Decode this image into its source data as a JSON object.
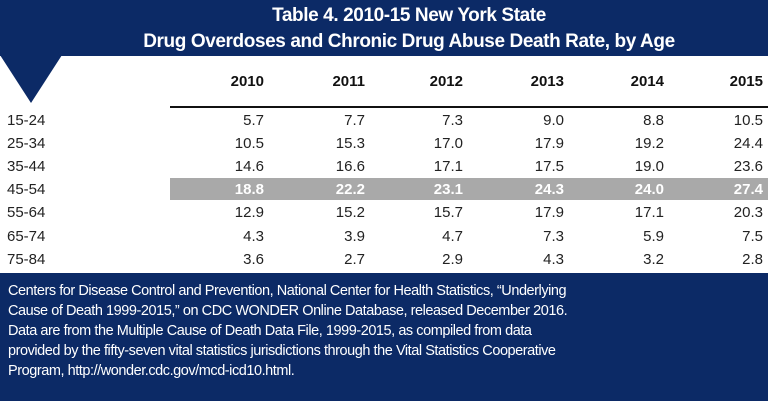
{
  "title_line1": "Table 4. 2010-15 New York State",
  "title_line2": "Drug Overdoses and Chronic Drug Abuse Death Rate, by Age",
  "colors": {
    "navy": "#0c2a66",
    "highlight": "#a9a9a9"
  },
  "highlight_row": "45-54",
  "chart_data": {
    "type": "table",
    "title": "Table 4. 2010-15 New York State Drug Overdoses and Chronic Drug Abuse Death Rate, by Age",
    "columns": [
      "2010",
      "2011",
      "2012",
      "2013",
      "2014",
      "2015"
    ],
    "rows": [
      {
        "label": "15-24",
        "values": [
          "5.7",
          "7.7",
          "7.3",
          "9.0",
          "8.8",
          "10.5"
        ]
      },
      {
        "label": "25-34",
        "values": [
          "10.5",
          "15.3",
          "17.0",
          "17.9",
          "19.2",
          "24.4"
        ]
      },
      {
        "label": "35-44",
        "values": [
          "14.6",
          "16.6",
          "17.1",
          "17.5",
          "19.0",
          "23.6"
        ]
      },
      {
        "label": "45-54",
        "values": [
          "18.8",
          "22.2",
          "23.1",
          "24.3",
          "24.0",
          "27.4"
        ]
      },
      {
        "label": "55-64",
        "values": [
          "12.9",
          "15.2",
          "15.7",
          "17.9",
          "17.1",
          "20.3"
        ]
      },
      {
        "label": "65-74",
        "values": [
          "4.3",
          "3.9",
          "4.7",
          "7.3",
          "5.9",
          "7.5"
        ]
      },
      {
        "label": "75-84",
        "values": [
          "3.6",
          "2.7",
          "2.9",
          "4.3",
          "3.2",
          "2.8"
        ]
      }
    ]
  },
  "footer_lines": [
    "Centers for Disease Control and Prevention, National Center for Health Statistics, “Underlying",
    "Cause of Death 1999-2015,” on CDC WONDER Online Database, released December 2016.",
    "Data are from the Multiple Cause of Death Data File, 1999-2015, as compiled from data",
    "provided by the fifty-seven vital statistics jurisdictions through the Vital Statistics Cooperative",
    "Program, http://wonder.cdc.gov/mcd-icd10.html."
  ]
}
